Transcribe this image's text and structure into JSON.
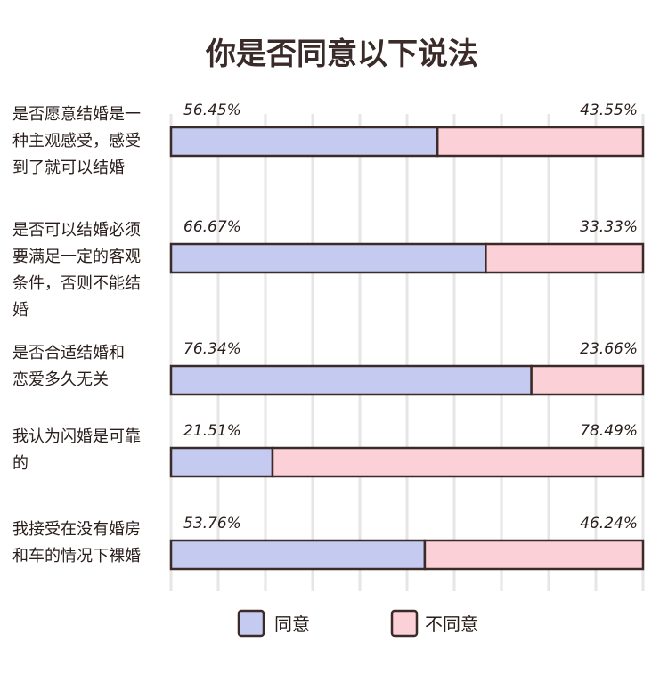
{
  "chart_data": {
    "type": "bar",
    "stacked": true,
    "orientation": "horizontal",
    "title": "你是否同意以下说法",
    "categories": [
      [
        "是否愿意结婚是一",
        "种主观感受，感受",
        "到了就可以结婚"
      ],
      [
        "是否可以结婚必须",
        "要满足一定的客观",
        "条件，否则不能结",
        "婚"
      ],
      [
        "是否合适结婚和",
        "恋爱多久无关"
      ],
      [
        "我认为闪婚是可靠",
        "的"
      ],
      [
        "我接受在没有婚房",
        "和车的情况下裸婚"
      ]
    ],
    "series": [
      {
        "name": "同意",
        "color": "#c5caf0",
        "values": [
          56.45,
          66.67,
          76.34,
          21.51,
          53.76
        ],
        "labels": [
          "56.45%",
          "66.67%",
          "76.34%",
          "21.51%",
          "53.76%"
        ]
      },
      {
        "name": "不同意",
        "color": "#fbd0d6",
        "values": [
          43.55,
          33.33,
          23.66,
          78.49,
          46.24
        ],
        "labels": [
          "43.55%",
          "33.33%",
          "23.66%",
          "78.49%",
          "46.24%"
        ]
      }
    ],
    "xlim": [
      0,
      100
    ],
    "grid": true,
    "legend": "bottom"
  },
  "colors": {
    "outline": "#3a2a28",
    "grid": "#e6e6e6"
  }
}
